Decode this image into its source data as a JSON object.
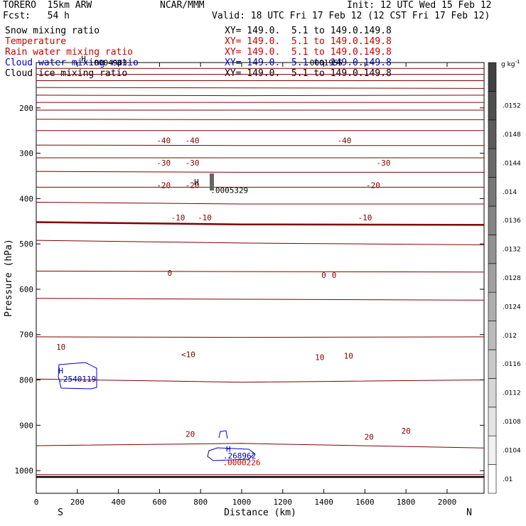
{
  "header": {
    "model": "TORERO  15km ARW",
    "org": "NCAR/MMM",
    "init": "Init: 12 UTC Wed 15 Feb 12",
    "fcst": "Fcst:   54 h",
    "valid": "Valid: 18 UTC Fri 17 Feb 12 (12 CST Fri 17 Feb 12)"
  },
  "fields": [
    {
      "name": "Snow mixing ratio",
      "xy": "XY= 149.0.  5.1 to 149.0.149.8",
      "color": "#000000"
    },
    {
      "name": "Temperature",
      "xy": "XY= 149.0.  5.1 to 149.0.149.8",
      "color": "#cc0000"
    },
    {
      "name": "Rain water mixing ratio",
      "xy": "XY= 149.0.  5.1 to 149.0.149.8",
      "color": "#cc0000"
    },
    {
      "name": "Cloud water mixing ratio",
      "xy": "XY= 149.0.  5.1 to 149.0.149.8",
      "color": "#0000cc"
    },
    {
      "name": "Cloud ice mixing ratio",
      "xy": "XY= 149.0.  5.1 to 149.0.149.8",
      "color": "#000000"
    }
  ],
  "chart_data": {
    "type": "contour",
    "xlabel": "Distance (km)",
    "ylabel": "Pressure (hPa)",
    "xlim": [
      0,
      2180
    ],
    "ylim": [
      1050,
      100
    ],
    "x_ticks": [
      0,
      200,
      400,
      600,
      800,
      1000,
      1200,
      1400,
      1600,
      1800,
      2000
    ],
    "y_ticks": [
      200,
      300,
      400,
      500,
      600,
      700,
      800,
      900,
      1000
    ],
    "left_end_label": "S",
    "right_end_label": "N",
    "colorbar": {
      "unit": "g kg",
      "unit_sup": "-1",
      "ticks": [
        ".01",
        ".0104",
        ".0108",
        ".0112",
        ".0116",
        ".012",
        ".0124",
        ".0128",
        ".0132",
        ".0136",
        ".014",
        ".0144",
        ".0148",
        ".0152"
      ],
      "range": [
        0.0098,
        0.0158
      ]
    },
    "temperature_contours": [
      {
        "level": -60,
        "p": [
          [
            0,
            113
          ],
          [
            2180,
            113
          ]
        ]
      },
      {
        "level": -60,
        "p": [
          [
            0,
            126
          ],
          [
            2180,
            126
          ]
        ]
      },
      {
        "level": -60,
        "p": [
          [
            0,
            140
          ],
          [
            2180,
            140
          ]
        ]
      },
      {
        "level": -55,
        "p": [
          [
            0,
            155
          ],
          [
            2180,
            157
          ]
        ]
      },
      {
        "level": -50,
        "p": [
          [
            0,
            172
          ],
          [
            1000,
            173
          ],
          [
            2180,
            172
          ]
        ]
      },
      {
        "level": -45,
        "p": [
          [
            0,
            188
          ],
          [
            2180,
            188
          ]
        ]
      },
      {
        "level": -40,
        "p": [
          [
            0,
            205
          ],
          [
            2180,
            205
          ]
        ]
      },
      {
        "level": -35,
        "p": [
          [
            0,
            225
          ],
          [
            1000,
            226
          ],
          [
            2180,
            226
          ]
        ]
      },
      {
        "level": -30,
        "p": [
          [
            0,
            250
          ],
          [
            2180,
            250
          ]
        ]
      },
      {
        "level": -25,
        "p": [
          [
            0,
            282
          ],
          [
            1000,
            283
          ],
          [
            2180,
            283
          ]
        ]
      },
      {
        "level": -20,
        "p": [
          [
            0,
            310
          ],
          [
            2180,
            310
          ]
        ]
      },
      {
        "level": -15,
        "p": [
          [
            0,
            340
          ],
          [
            1000,
            342
          ],
          [
            2180,
            342
          ]
        ]
      },
      {
        "level": -10,
        "p": [
          [
            0,
            375
          ],
          [
            2180,
            375
          ]
        ]
      },
      {
        "level": -5,
        "p": [
          [
            0,
            408
          ],
          [
            1000,
            412
          ],
          [
            2180,
            412
          ]
        ]
      },
      {
        "level": 0,
        "p": [
          [
            0,
            452
          ],
          [
            1000,
            457
          ],
          [
            2180,
            458
          ]
        ]
      },
      {
        "level": 5,
        "p": [
          [
            0,
            492
          ],
          [
            1000,
            498
          ],
          [
            2180,
            502
          ]
        ]
      },
      {
        "level": 10,
        "p": [
          [
            0,
            560
          ],
          [
            2180,
            562
          ]
        ]
      },
      {
        "level": 15,
        "p": [
          [
            0,
            620
          ],
          [
            1000,
            622
          ],
          [
            2180,
            624
          ]
        ]
      },
      {
        "level": 20,
        "p": [
          [
            0,
            705
          ],
          [
            1000,
            706
          ],
          [
            2180,
            705
          ]
        ]
      },
      {
        "level": 25,
        "p": [
          [
            0,
            798
          ],
          [
            1000,
            805
          ],
          [
            2180,
            800
          ]
        ]
      },
      {
        "level": 30,
        "p": [
          [
            0,
            945
          ],
          [
            1000,
            940
          ],
          [
            2180,
            950
          ]
        ]
      },
      {
        "level": 35,
        "p": [
          [
            0,
            1009
          ],
          [
            2180,
            1009
          ]
        ]
      }
    ],
    "labels": [
      {
        "text": "-40",
        "x": 620,
        "p": 278,
        "color": "#800000"
      },
      {
        "text": "-40",
        "x": 760,
        "p": 278,
        "color": "#800000"
      },
      {
        "text": "-40",
        "x": 1500,
        "p": 278,
        "color": "#800000"
      },
      {
        "text": "-30",
        "x": 620,
        "p": 327,
        "color": "#800000"
      },
      {
        "text": "-30",
        "x": 760,
        "p": 327,
        "color": "#800000"
      },
      {
        "text": "-30",
        "x": 1690,
        "p": 327,
        "color": "#800000"
      },
      {
        "text": "-20",
        "x": 620,
        "p": 377,
        "color": "#800000"
      },
      {
        "text": "-20",
        "x": 760,
        "p": 377,
        "color": "#800000"
      },
      {
        "text": "-20",
        "x": 1640,
        "p": 377,
        "color": "#800000"
      },
      {
        "text": "-10",
        "x": 690,
        "p": 448,
        "color": "#800000"
      },
      {
        "text": "-10",
        "x": 820,
        "p": 448,
        "color": "#800000"
      },
      {
        "text": "-10",
        "x": 1600,
        "p": 448,
        "color": "#800000"
      },
      {
        "text": "0",
        "x": 650,
        "p": 570,
        "color": "#800000"
      },
      {
        "text": "0",
        "x": 1400,
        "p": 575,
        "color": "#800000"
      },
      {
        "text": "0",
        "x": 1450,
        "p": 575,
        "color": "#800000"
      },
      {
        "text": "10",
        "x": 120,
        "p": 733,
        "color": "#800000"
      },
      {
        "text": "<10",
        "x": 740,
        "p": 750,
        "color": "#800000"
      },
      {
        "text": "10",
        "x": 1380,
        "p": 756,
        "color": "#800000"
      },
      {
        "text": "10",
        "x": 1520,
        "p": 753,
        "color": "#800000"
      },
      {
        "text": "20",
        "x": 750,
        "p": 925,
        "color": "#800000"
      },
      {
        "text": "20",
        "x": 1800,
        "p": 918,
        "color": "#800000"
      },
      {
        "text": "20",
        "x": 1620,
        "p": 932,
        "color": "#800000"
      },
      {
        "text": "H",
        "x": 230,
        "p": 98,
        "color": "#000000"
      },
      {
        "text": ".0004983",
        "x": 350,
        "p": 106,
        "color": "#000000"
      },
      {
        "text": "H",
        "x": 780,
        "p": 370,
        "color": "#000000"
      },
      {
        "text": ".0005329",
        "x": 940,
        "p": 388,
        "color": "#000000"
      },
      {
        "text": ".0001955",
        "x": 1400,
        "p": 106,
        "color": "#000000"
      },
      {
        "text": "H",
        "x": 120,
        "p": 786,
        "color": "#0000aa"
      },
      {
        "text": ".2540119",
        "x": 200,
        "p": 804,
        "color": "#0000aa"
      },
      {
        "text": "H",
        "x": 935,
        "p": 958,
        "color": "#0000aa"
      },
      {
        "text": ".268962",
        "x": 990,
        "p": 973,
        "color": "#0000aa"
      },
      {
        "text": ".0000226",
        "x": 1000,
        "p": 988,
        "color": "#cc0000"
      }
    ]
  }
}
